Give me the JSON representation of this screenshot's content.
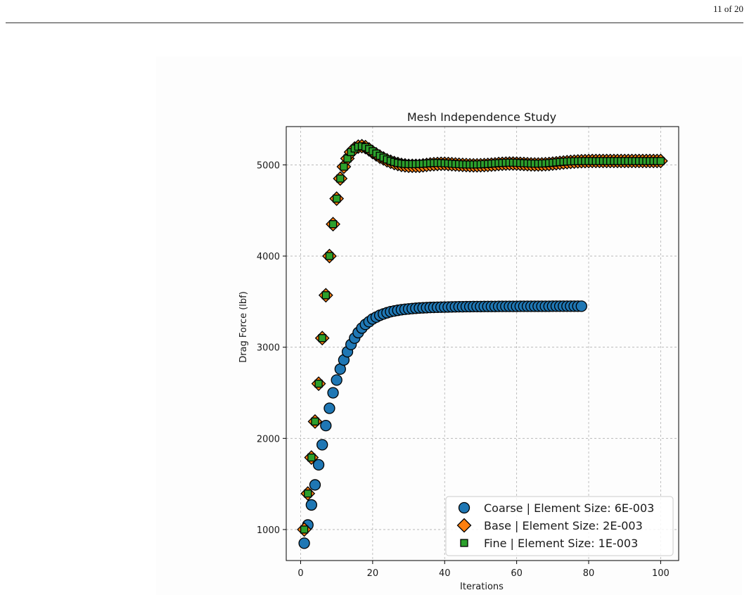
{
  "page": {
    "page_number": "11 of 20"
  },
  "chart_data": {
    "type": "scatter",
    "title": "Mesh Independence Study",
    "xlabel": "Iterations",
    "ylabel": "Drag Force (lbf)",
    "xlim": [
      -4,
      105
    ],
    "ylim": [
      660,
      5420
    ],
    "xticks": [
      0,
      20,
      40,
      60,
      80,
      100
    ],
    "yticks": [
      1000,
      2000,
      3000,
      4000,
      5000
    ],
    "grid": true,
    "legend_position": "lower-right",
    "series": [
      {
        "name": "Coarse | Element Size: 6E-003",
        "marker": "circle",
        "color": "#1f77b4",
        "x": [
          1,
          2,
          3,
          4,
          5,
          6,
          7,
          8,
          9,
          10,
          11,
          12,
          13,
          14,
          15,
          16,
          17,
          18,
          19,
          20,
          21,
          22,
          23,
          24,
          25,
          26,
          27,
          28,
          29,
          30,
          31,
          32,
          33,
          34,
          35,
          36,
          37,
          38,
          39,
          40,
          41,
          42,
          43,
          44,
          45,
          46,
          47,
          48,
          49,
          50,
          51,
          52,
          53,
          54,
          55,
          56,
          57,
          58,
          59,
          60,
          61,
          62,
          63,
          64,
          65,
          66,
          67,
          68,
          69,
          70,
          71,
          72,
          73,
          74,
          75,
          76,
          77,
          78
        ],
        "y": [
          850,
          1050,
          1270,
          1490,
          1710,
          1930,
          2140,
          2330,
          2500,
          2640,
          2760,
          2860,
          2950,
          3030,
          3100,
          3160,
          3210,
          3250,
          3280,
          3310,
          3330,
          3350,
          3365,
          3378,
          3390,
          3398,
          3405,
          3411,
          3416,
          3420,
          3424,
          3427,
          3430,
          3432,
          3434,
          3436,
          3437,
          3438,
          3439,
          3440,
          3441,
          3442,
          3443,
          3444,
          3444,
          3445,
          3445,
          3446,
          3446,
          3446,
          3447,
          3447,
          3447,
          3447,
          3448,
          3448,
          3448,
          3448,
          3448,
          3448,
          3449,
          3449,
          3449,
          3449,
          3449,
          3449,
          3449,
          3449,
          3449,
          3450,
          3450,
          3450,
          3450,
          3450,
          3450,
          3450,
          3450,
          3450
        ]
      },
      {
        "name": "Base | Element Size: 2E-003",
        "marker": "diamond",
        "color": "#ff7f0e",
        "x": [
          1,
          2,
          3,
          4,
          5,
          6,
          7,
          8,
          9,
          10,
          11,
          12,
          13,
          14,
          15,
          16,
          17,
          18,
          19,
          20,
          21,
          22,
          23,
          24,
          25,
          26,
          27,
          28,
          29,
          30,
          31,
          32,
          33,
          34,
          35,
          36,
          37,
          38,
          39,
          40,
          41,
          42,
          43,
          44,
          45,
          46,
          47,
          48,
          49,
          50,
          51,
          52,
          53,
          54,
          55,
          56,
          57,
          58,
          59,
          60,
          61,
          62,
          63,
          64,
          65,
          66,
          67,
          68,
          69,
          70,
          71,
          72,
          73,
          74,
          75,
          76,
          77,
          78,
          79,
          80,
          81,
          82,
          83,
          84,
          85,
          86,
          87,
          88,
          89,
          90,
          91,
          92,
          93,
          94,
          95,
          96,
          97,
          98,
          99,
          100
        ],
        "y": [
          1000,
          1395,
          1790,
          2185,
          2600,
          3100,
          3570,
          4000,
          4350,
          4630,
          4850,
          4980,
          5070,
          5140,
          5180,
          5200,
          5205,
          5195,
          5170,
          5140,
          5115,
          5090,
          5070,
          5050,
          5035,
          5020,
          5010,
          5000,
          4995,
          4990,
          4990,
          4990,
          4990,
          4995,
          5000,
          5005,
          5008,
          5010,
          5012,
          5012,
          5010,
          5008,
          5005,
          5002,
          5000,
          4998,
          4996,
          4995,
          4995,
          4996,
          4998,
          5000,
          5003,
          5006,
          5010,
          5012,
          5014,
          5015,
          5015,
          5014,
          5012,
          5010,
          5008,
          5006,
          5005,
          5005,
          5006,
          5008,
          5010,
          5014,
          5018,
          5022,
          5026,
          5030,
          5033,
          5036,
          5038,
          5040,
          5041,
          5042,
          5043,
          5043,
          5043,
          5043,
          5043,
          5043,
          5043,
          5043,
          5043,
          5043,
          5043,
          5043,
          5043,
          5043,
          5043,
          5043,
          5043,
          5043,
          5043,
          5043
        ]
      },
      {
        "name": "Fine | Element Size: 1E-003",
        "marker": "square",
        "color": "#2ca02c",
        "x": [
          1,
          2,
          3,
          4,
          5,
          6,
          7,
          8,
          9,
          10,
          11,
          12,
          13,
          14,
          15,
          16,
          17,
          18,
          19,
          20,
          21,
          22,
          23,
          24,
          25,
          26,
          27,
          28,
          29,
          30,
          31,
          32,
          33,
          34,
          35,
          36,
          37,
          38,
          39,
          40,
          41,
          42,
          43,
          44,
          45,
          46,
          47,
          48,
          49,
          50,
          51,
          52,
          53,
          54,
          55,
          56,
          57,
          58,
          59,
          60,
          61,
          62,
          63,
          64,
          65,
          66,
          67,
          68,
          69,
          70,
          71,
          72,
          73,
          74,
          75,
          76,
          77,
          78,
          79,
          80,
          81,
          82,
          83,
          84,
          85,
          86,
          87,
          88,
          89,
          90,
          91,
          92,
          93,
          94,
          95,
          96,
          97,
          98,
          99,
          100
        ],
        "y": [
          1000,
          1395,
          1790,
          2185,
          2600,
          3100,
          3570,
          4000,
          4350,
          4630,
          4850,
          4980,
          5070,
          5140,
          5180,
          5200,
          5205,
          5195,
          5175,
          5150,
          5125,
          5100,
          5080,
          5060,
          5045,
          5032,
          5022,
          5015,
          5010,
          5008,
          5008,
          5008,
          5010,
          5012,
          5015,
          5018,
          5020,
          5021,
          5020,
          5018,
          5016,
          5013,
          5010,
          5008,
          5006,
          5005,
          5004,
          5004,
          5005,
          5006,
          5008,
          5010,
          5013,
          5016,
          5019,
          5021,
          5023,
          5024,
          5024,
          5023,
          5021,
          5019,
          5017,
          5015,
          5014,
          5014,
          5015,
          5017,
          5020,
          5023,
          5027,
          5031,
          5034,
          5037,
          5039,
          5040,
          5041,
          5042,
          5042,
          5042,
          5042,
          5042,
          5042,
          5042,
          5042,
          5042,
          5042,
          5042,
          5042,
          5042,
          5042,
          5042,
          5042,
          5042,
          5042,
          5042,
          5042,
          5042,
          5042,
          5042
        ]
      }
    ]
  }
}
